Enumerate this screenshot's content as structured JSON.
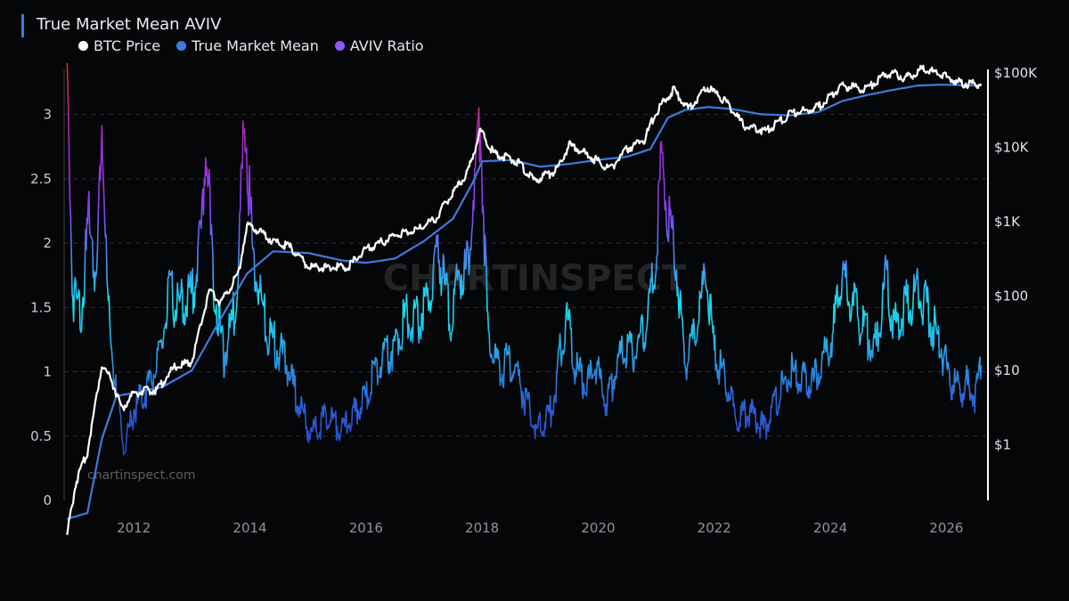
{
  "chart_data": {
    "type": "line",
    "title": "True Market Mean AVIV",
    "series": [
      {
        "name": "BTC Price",
        "color": "#ffffff",
        "axis": "right",
        "points": [
          [
            2010.85,
            0.06
          ],
          [
            2011.0,
            0.3
          ],
          [
            2011.2,
            0.8
          ],
          [
            2011.45,
            12
          ],
          [
            2011.6,
            8
          ],
          [
            2011.8,
            3
          ],
          [
            2012.0,
            5
          ],
          [
            2012.4,
            5.5
          ],
          [
            2012.7,
            11
          ],
          [
            2013.0,
            13
          ],
          [
            2013.3,
            120
          ],
          [
            2013.5,
            80
          ],
          [
            2013.8,
            200
          ],
          [
            2013.95,
            900
          ],
          [
            2014.1,
            800
          ],
          [
            2014.4,
            550
          ],
          [
            2014.7,
            450
          ],
          [
            2015.0,
            250
          ],
          [
            2015.3,
            240
          ],
          [
            2015.7,
            250
          ],
          [
            2016.0,
            420
          ],
          [
            2016.5,
            650
          ],
          [
            2016.9,
            800
          ],
          [
            2017.2,
            1100
          ],
          [
            2017.5,
            2500
          ],
          [
            2017.75,
            4500
          ],
          [
            2017.97,
            17000
          ],
          [
            2018.2,
            8500
          ],
          [
            2018.6,
            6500
          ],
          [
            2018.9,
            3500
          ],
          [
            2019.3,
            5000
          ],
          [
            2019.5,
            11000
          ],
          [
            2019.9,
            7300
          ],
          [
            2020.2,
            5000
          ],
          [
            2020.5,
            9500
          ],
          [
            2020.8,
            13000
          ],
          [
            2021.0,
            30000
          ],
          [
            2021.3,
            60000
          ],
          [
            2021.55,
            33000
          ],
          [
            2021.87,
            65000
          ],
          [
            2022.2,
            42000
          ],
          [
            2022.5,
            20000
          ],
          [
            2022.9,
            16500
          ],
          [
            2023.3,
            28000
          ],
          [
            2023.8,
            35000
          ],
          [
            2024.2,
            68000
          ],
          [
            2024.6,
            60000
          ],
          [
            2024.95,
            98000
          ],
          [
            2025.1,
            100000
          ],
          [
            2025.3,
            85000
          ],
          [
            2025.6,
            115000
          ],
          [
            2025.9,
            95000
          ],
          [
            2026.2,
            75000
          ],
          [
            2026.5,
            70000
          ],
          [
            2026.6,
            72000
          ]
        ]
      },
      {
        "name": "True Market Mean",
        "color": "#3d7be0",
        "axis": "right",
        "points": [
          [
            2010.85,
            0.1
          ],
          [
            2011.2,
            0.12
          ],
          [
            2011.45,
            1.2
          ],
          [
            2011.7,
            4.5
          ],
          [
            2012.0,
            5
          ],
          [
            2012.5,
            6
          ],
          [
            2013.0,
            10
          ],
          [
            2013.5,
            50
          ],
          [
            2013.95,
            200
          ],
          [
            2014.4,
            400
          ],
          [
            2015.0,
            380
          ],
          [
            2015.6,
            300
          ],
          [
            2016.0,
            280
          ],
          [
            2016.5,
            320
          ],
          [
            2017.0,
            550
          ],
          [
            2017.5,
            1100
          ],
          [
            2017.85,
            3500
          ],
          [
            2018.0,
            6500
          ],
          [
            2018.5,
            6800
          ],
          [
            2019.0,
            5500
          ],
          [
            2019.5,
            6000
          ],
          [
            2020.0,
            6800
          ],
          [
            2020.5,
            7500
          ],
          [
            2020.9,
            9500
          ],
          [
            2021.2,
            25000
          ],
          [
            2021.5,
            32000
          ],
          [
            2021.9,
            35000
          ],
          [
            2022.3,
            33000
          ],
          [
            2022.8,
            28000
          ],
          [
            2023.3,
            27000
          ],
          [
            2023.8,
            30000
          ],
          [
            2024.2,
            42000
          ],
          [
            2024.6,
            50000
          ],
          [
            2025.0,
            58000
          ],
          [
            2025.5,
            68000
          ],
          [
            2025.9,
            70000
          ],
          [
            2026.6,
            68000
          ]
        ]
      },
      {
        "name": "AVIV Ratio",
        "color": "#8b5cf6",
        "axis": "left",
        "points": [
          [
            2010.85,
            3.3
          ],
          [
            2010.95,
            1.6
          ],
          [
            2011.1,
            1.5
          ],
          [
            2011.25,
            2.3
          ],
          [
            2011.35,
            1.6
          ],
          [
            2011.45,
            3.05
          ],
          [
            2011.55,
            1.5
          ],
          [
            2011.7,
            0.8
          ],
          [
            2011.85,
            0.4
          ],
          [
            2012.0,
            0.7
          ],
          [
            2012.2,
            0.85
          ],
          [
            2012.45,
            1.1
          ],
          [
            2012.6,
            1.6
          ],
          [
            2012.8,
            1.5
          ],
          [
            2013.0,
            1.6
          ],
          [
            2013.15,
            2.0
          ],
          [
            2013.25,
            2.85
          ],
          [
            2013.35,
            1.8
          ],
          [
            2013.55,
            1.1
          ],
          [
            2013.75,
            1.5
          ],
          [
            2013.92,
            3.0
          ],
          [
            2014.05,
            1.9
          ],
          [
            2014.3,
            1.3
          ],
          [
            2014.6,
            1.1
          ],
          [
            2014.85,
            0.75
          ],
          [
            2015.05,
            0.5
          ],
          [
            2015.3,
            0.65
          ],
          [
            2015.6,
            0.55
          ],
          [
            2015.85,
            0.7
          ],
          [
            2016.0,
            0.8
          ],
          [
            2016.2,
            1.05
          ],
          [
            2016.5,
            1.2
          ],
          [
            2016.7,
            1.45
          ],
          [
            2016.9,
            1.4
          ],
          [
            2017.1,
            1.6
          ],
          [
            2017.25,
            1.95
          ],
          [
            2017.45,
            1.4
          ],
          [
            2017.6,
            1.75
          ],
          [
            2017.75,
            1.8
          ],
          [
            2017.97,
            3.0
          ],
          [
            2018.1,
            1.3
          ],
          [
            2018.3,
            1.0
          ],
          [
            2018.5,
            1.1
          ],
          [
            2018.7,
            0.85
          ],
          [
            2018.95,
            0.55
          ],
          [
            2019.2,
            0.7
          ],
          [
            2019.45,
            1.45
          ],
          [
            2019.6,
            1.05
          ],
          [
            2019.8,
            0.9
          ],
          [
            2019.95,
            1.05
          ],
          [
            2020.15,
            0.75
          ],
          [
            2020.35,
            1.1
          ],
          [
            2020.6,
            1.15
          ],
          [
            2020.8,
            1.3
          ],
          [
            2020.95,
            1.7
          ],
          [
            2021.1,
            2.65
          ],
          [
            2021.2,
            2.3
          ],
          [
            2021.35,
            1.85
          ],
          [
            2021.5,
            1.05
          ],
          [
            2021.7,
            1.35
          ],
          [
            2021.87,
            1.8
          ],
          [
            2022.0,
            1.15
          ],
          [
            2022.2,
            0.95
          ],
          [
            2022.4,
            0.6
          ],
          [
            2022.6,
            0.7
          ],
          [
            2022.85,
            0.55
          ],
          [
            2023.05,
            0.75
          ],
          [
            2023.3,
            1.0
          ],
          [
            2023.5,
            0.95
          ],
          [
            2023.7,
            0.9
          ],
          [
            2023.9,
            1.1
          ],
          [
            2024.05,
            1.3
          ],
          [
            2024.2,
            1.8
          ],
          [
            2024.4,
            1.5
          ],
          [
            2024.6,
            1.3
          ],
          [
            2024.8,
            1.2
          ],
          [
            2024.95,
            1.75
          ],
          [
            2025.1,
            1.35
          ],
          [
            2025.3,
            1.5
          ],
          [
            2025.5,
            1.65
          ],
          [
            2025.7,
            1.45
          ],
          [
            2025.9,
            1.2
          ],
          [
            2026.05,
            0.95
          ],
          [
            2026.2,
            0.85
          ],
          [
            2026.35,
            0.9
          ],
          [
            2026.5,
            0.8
          ],
          [
            2026.6,
            1.05
          ]
        ]
      }
    ],
    "x_ticks": [
      "2012",
      "2014",
      "2016",
      "2018",
      "2020",
      "2022",
      "2024",
      "2026"
    ],
    "y_left_ticks": [
      "0",
      "0.5",
      "1",
      "1.5",
      "2",
      "2.5",
      "3"
    ],
    "y_right_ticks": [
      "$1",
      "$10",
      "$100",
      "$1K",
      "$10K",
      "$100K"
    ],
    "xlim": [
      2010.8,
      2026.7
    ],
    "ylim_left": [
      0,
      3.35
    ],
    "ylim_right_log10": [
      -0.75,
      5.05
    ],
    "right_scale": "log",
    "grid": "horizontal dashed"
  },
  "watermark": "CHARTINSPECT",
  "credit": "chartinspect.com"
}
